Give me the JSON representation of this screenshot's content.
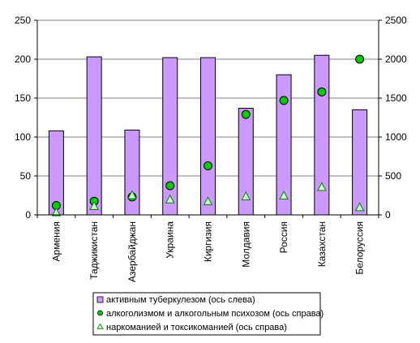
{
  "chart_data": {
    "type": "bar",
    "categories": [
      "Армения",
      "Таджикистан",
      "Азербайджан",
      "Украина",
      "Киргизия",
      "Молдавия",
      "Россия",
      "Казахстан",
      "Белоруссия"
    ],
    "series": [
      {
        "name": "активным туберкулезом (ось слева)",
        "kind": "bar",
        "axis": "left",
        "color": "#cc99ff",
        "values": [
          108,
          203,
          109,
          202,
          202,
          137,
          180,
          205,
          135
        ]
      },
      {
        "name": "алкоголизмом и алкогольным психозом (ось справа)",
        "kind": "marker-circle",
        "axis": "right",
        "color": "#00cc00",
        "values": [
          120,
          175,
          230,
          375,
          630,
          1290,
          1470,
          1580,
          2000
        ]
      },
      {
        "name": "наркоманией и токсикоманией (ось справа)",
        "kind": "marker-triangle",
        "axis": "right",
        "color": "#ccffcc",
        "values": [
          30,
          110,
          250,
          195,
          170,
          235,
          245,
          355,
          95
        ]
      }
    ],
    "ylim_left": [
      0,
      250
    ],
    "yticks_left": [
      "0",
      "50",
      "100",
      "150",
      "200",
      "250"
    ],
    "ylim_right": [
      0,
      2500
    ],
    "yticks_right": [
      "0",
      "500",
      "1000",
      "1500",
      "2000",
      "2500"
    ],
    "grid": true,
    "legend": "bottom"
  }
}
